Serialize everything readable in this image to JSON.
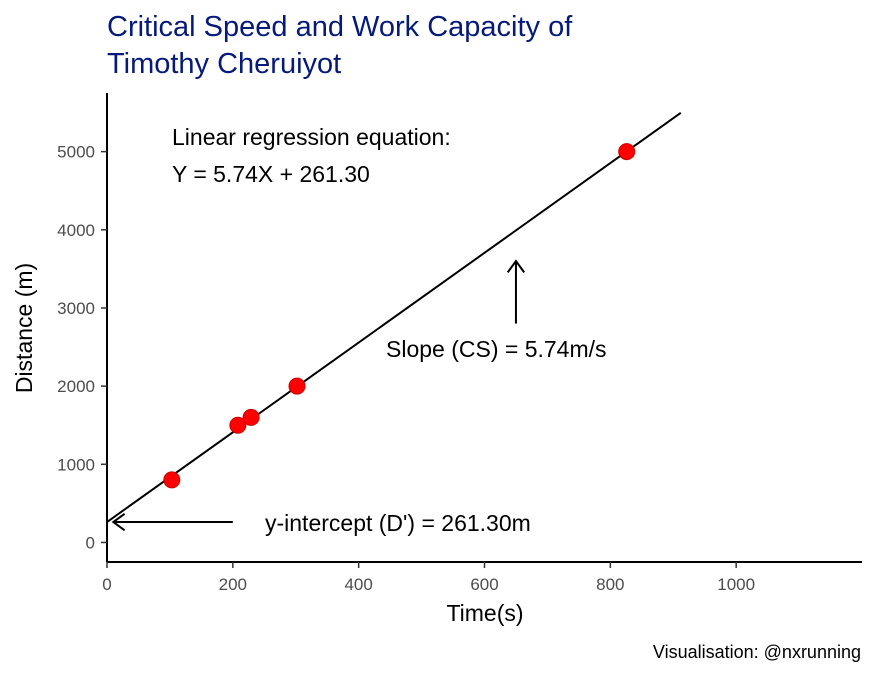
{
  "chart_data": {
    "type": "scatter",
    "title_lines": [
      "Critical Speed and Work Capacity of",
      "Timothy Cheruiyot"
    ],
    "xlabel": "Time(s)",
    "ylabel": "Distance (m)",
    "xlim": [
      0,
      1200
    ],
    "ylim": [
      -250,
      5750
    ],
    "x_ticks": [
      0,
      200,
      400,
      600,
      800,
      1000
    ],
    "y_ticks": [
      0,
      1000,
      2000,
      3000,
      4000,
      5000
    ],
    "grid": false,
    "points": [
      {
        "x": 103,
        "y": 800
      },
      {
        "x": 208,
        "y": 1500
      },
      {
        "x": 229,
        "y": 1600
      },
      {
        "x": 302,
        "y": 2000
      },
      {
        "x": 826,
        "y": 5000
      }
    ],
    "regression": {
      "slope": 5.74,
      "intercept": 261.3,
      "x_range": [
        0,
        912
      ]
    },
    "annotations": {
      "equation_heading": "Linear regression equation:",
      "equation": "Y = 5.74X + 261.30",
      "slope_label": "Slope (CS) = 5.74m/s",
      "intercept_label": "y-intercept (D') = 261.30m",
      "slope_arrow": {
        "from": [
          650,
          2800
        ],
        "to": [
          650,
          3600
        ]
      },
      "intercept_arrow": {
        "from": [
          200,
          261.3
        ],
        "to": [
          10,
          261.3
        ]
      }
    },
    "caption": "Visualisation: @nxrunning",
    "colors": {
      "title": "#061a7a",
      "point": "#ff0000",
      "line": "#000000",
      "axis": "#000000",
      "tick_text": "#4d4d4d"
    }
  }
}
